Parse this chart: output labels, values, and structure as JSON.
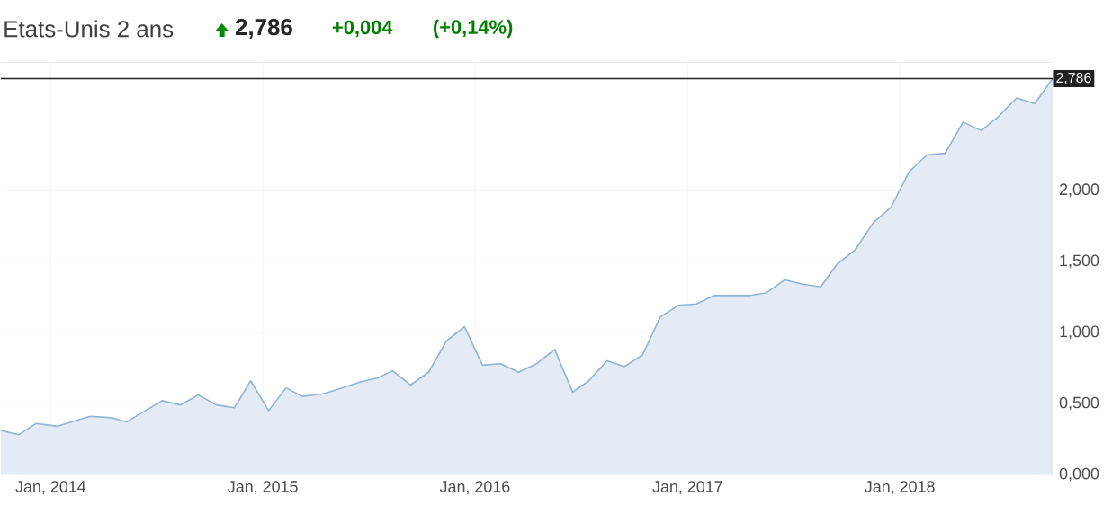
{
  "chart_data": {
    "type": "area",
    "title": "Etats-Unis 2 ans",
    "annotations": [
      "2,786",
      "+0,004",
      "(+0,14%)"
    ],
    "x": [
      "2013-10-07",
      "2013-11-07",
      "2013-12-07",
      "2014-01-13",
      "2014-03-10",
      "2014-04-16",
      "2014-05-11",
      "2014-07-12",
      "2014-08-12",
      "2014-09-12",
      "2014-10-13",
      "2014-11-13",
      "2014-12-11",
      "2015-01-11",
      "2015-02-10",
      "2015-03-10",
      "2015-04-17",
      "2015-06-17",
      "2015-07-18",
      "2015-08-12",
      "2015-09-12",
      "2015-10-13",
      "2015-11-13",
      "2015-12-14",
      "2016-01-14",
      "2016-02-14",
      "2016-03-16",
      "2016-04-16",
      "2016-05-17",
      "2016-06-17",
      "2016-07-15",
      "2016-08-15",
      "2016-09-14",
      "2016-10-15",
      "2016-11-15",
      "2016-12-16",
      "2017-01-16",
      "2017-02-16",
      "2017-03-19",
      "2017-04-19",
      "2017-05-17",
      "2017-06-17",
      "2017-07-18",
      "2017-08-18",
      "2017-09-15",
      "2017-10-16",
      "2017-11-16",
      "2017-12-17",
      "2018-01-17",
      "2018-02-17",
      "2018-03-20",
      "2018-04-20",
      "2018-05-21",
      "2018-06-20",
      "2018-07-21",
      "2018-08-21",
      "2018-09-21"
    ],
    "series": [
      {
        "color": "#8fb3d4",
        "values": [
          0.31,
          0.28,
          0.36,
          0.34,
          0.41,
          0.4,
          0.37,
          0.52,
          0.49,
          0.56,
          0.49,
          0.47,
          0.66,
          0.45,
          0.61,
          0.55,
          0.57,
          0.65,
          0.68,
          0.73,
          0.63,
          0.72,
          0.94,
          1.04,
          0.77,
          0.78,
          0.72,
          0.78,
          0.88,
          0.58,
          0.66,
          0.8,
          0.76,
          0.84,
          1.11,
          1.19,
          1.2,
          1.26,
          1.26,
          1.26,
          1.28,
          1.37,
          1.34,
          1.32,
          1.48,
          1.58,
          1.77,
          1.88,
          2.13,
          2.25,
          2.26,
          2.48,
          2.42,
          2.52,
          2.65,
          2.61,
          2.786
        ]
      }
    ],
    "xlim": [
      "2013-10-07",
      "2018-09-21"
    ],
    "xticks": [
      {
        "value": "2014-01-01",
        "label": "Jan, 2014"
      },
      {
        "value": "2015-01-01",
        "label": "Jan, 2015"
      },
      {
        "value": "2016-01-01",
        "label": "Jan, 2016"
      },
      {
        "value": "2017-01-01",
        "label": "Jan, 2017"
      },
      {
        "value": "2018-01-01",
        "label": "Jan, 2018"
      }
    ],
    "ylim": [
      0,
      2.9
    ],
    "yticks": [
      {
        "value": 0,
        "label": "0,000"
      },
      {
        "value": 0.5,
        "label": "0,500"
      },
      {
        "value": 1,
        "label": "1,000"
      },
      {
        "value": 1.5,
        "label": "1,500"
      },
      {
        "value": 2,
        "label": "2,000"
      }
    ],
    "ref_lines": [
      {
        "axis": "y",
        "value": 2.786,
        "label": "2,786",
        "color": "#222222"
      }
    ],
    "grid": true
  }
}
